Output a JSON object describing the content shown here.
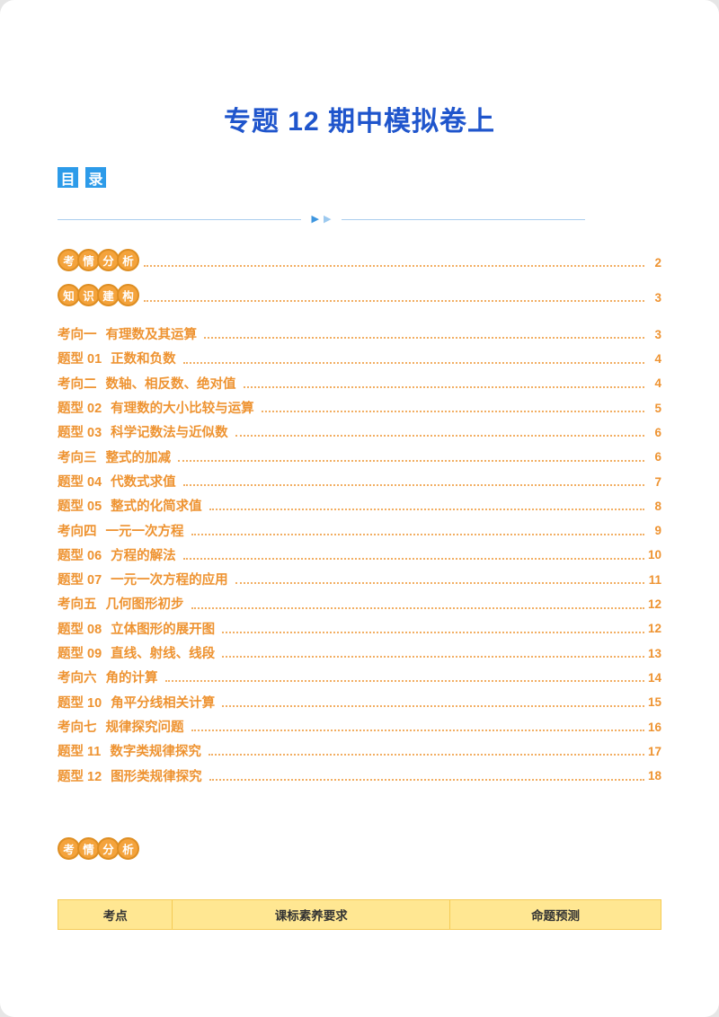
{
  "title": "专题 12 期中模拟卷上",
  "toc": {
    "heading": "目录",
    "badge_rows": [
      {
        "badge": "考情分析",
        "page": "2"
      },
      {
        "badge": "知识建构",
        "page": "3"
      }
    ],
    "entries": [
      {
        "label": "考向一",
        "title": "有理数及其运算",
        "page": "3"
      },
      {
        "label": "题型 01",
        "title": "正数和负数",
        "page": "4"
      },
      {
        "label": "考向二",
        "title": "数轴、相反数、绝对值",
        "page": "4"
      },
      {
        "label": "题型 02",
        "title": "有理数的大小比较与运算",
        "page": "5"
      },
      {
        "label": "题型 03",
        "title": "科学记数法与近似数",
        "page": "6"
      },
      {
        "label": "考向三",
        "title": "整式的加减",
        "page": "6"
      },
      {
        "label": "题型 04",
        "title": "代数式求值",
        "page": "7"
      },
      {
        "label": "题型 05",
        "title": "整式的化简求值",
        "page": "8"
      },
      {
        "label": "考向四",
        "title": "一元一次方程",
        "page": "9"
      },
      {
        "label": "题型 06",
        "title": "方程的解法",
        "page": "10"
      },
      {
        "label": "题型 07",
        "title": "一元一次方程的应用",
        "page": "11"
      },
      {
        "label": "考向五",
        "title": "几何图形初步",
        "page": "12"
      },
      {
        "label": "题型 08",
        "title": "立体图形的展开图",
        "page": "12"
      },
      {
        "label": "题型 09",
        "title": "直线、射线、线段",
        "page": "13"
      },
      {
        "label": "考向六",
        "title": "角的计算",
        "page": "14"
      },
      {
        "label": "题型 10",
        "title": "角平分线相关计算",
        "page": "15"
      },
      {
        "label": "考向七",
        "title": "规律探究问题",
        "page": "16"
      },
      {
        "label": "题型 11",
        "title": "数字类规律探究",
        "page": "17"
      },
      {
        "label": "题型 12",
        "title": "图形类规律探究",
        "page": "18"
      }
    ]
  },
  "divider": {
    "arrows": [
      "▶",
      "▶"
    ]
  },
  "bottom_badge": "考情分析",
  "table": {
    "headers": [
      "考点",
      "课标素养要求",
      "命题预测"
    ]
  },
  "colors": {
    "title_blue": "#1F55CC",
    "heading_blue": "#2D9BE9",
    "accent_orange": "#EE9331",
    "badge_orange": "#F4A33C",
    "table_header_bg": "#FFE792"
  }
}
